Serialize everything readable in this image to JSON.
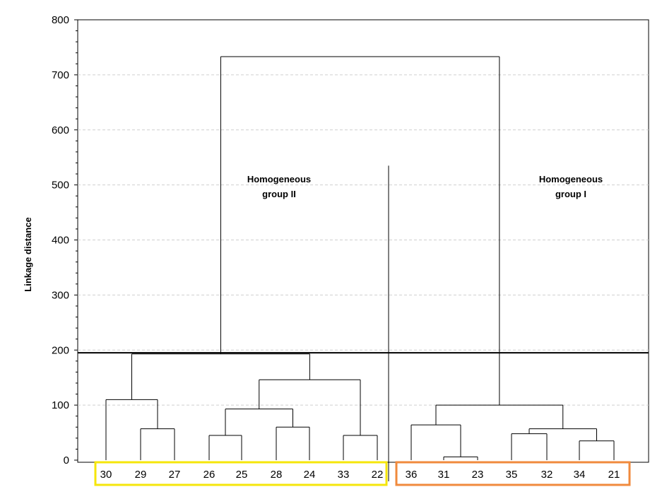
{
  "chart_data": {
    "type": "dendrogram",
    "title": "",
    "xlabel": "",
    "ylabel": "Linkage distance",
    "ylim": [
      0,
      800
    ],
    "yticks": [
      0,
      100,
      200,
      300,
      400,
      500,
      600,
      700,
      800
    ],
    "grid": true,
    "leaves": [
      "30",
      "29",
      "27",
      "26",
      "25",
      "28",
      "24",
      "33",
      "22",
      "36",
      "31",
      "23",
      "35",
      "32",
      "34",
      "21"
    ],
    "merges": [
      {
        "left": "29",
        "right": "27",
        "height": 57
      },
      {
        "left": "30",
        "right": "29-27",
        "height": 110
      },
      {
        "left": "26",
        "right": "25",
        "height": 45
      },
      {
        "left": "28",
        "right": "24",
        "height": 60
      },
      {
        "left": "26-25",
        "right": "28-24",
        "height": 93
      },
      {
        "left": "33",
        "right": "22",
        "height": 45
      },
      {
        "left": "26-25-28-24",
        "right": "33-22",
        "height": 146
      },
      {
        "left": "30-29-27",
        "right": "26-25-28-24-33-22",
        "height": 193
      },
      {
        "left": "31",
        "right": "23",
        "height": 6
      },
      {
        "left": "36",
        "right": "31-23",
        "height": 64
      },
      {
        "left": "34",
        "right": "21",
        "height": 35
      },
      {
        "left": "35",
        "right": "32",
        "height": 48
      },
      {
        "left": "35-32",
        "right": "34-21",
        "height": 57
      },
      {
        "left": "36-31-23",
        "right": "35-32-34-21",
        "height": 100
      },
      {
        "left": "group II",
        "right": "group I",
        "height": 733
      }
    ],
    "cut_line": 195,
    "divider_height": 535,
    "groups": [
      {
        "label_lines": [
          "Homogeneous",
          "group II"
        ],
        "leaves": [
          "30",
          "29",
          "27",
          "26",
          "25",
          "28",
          "24",
          "33",
          "22"
        ],
        "box_color": "#f5e60a"
      },
      {
        "label_lines": [
          "Homogeneous",
          "group I"
        ],
        "leaves": [
          "36",
          "31",
          "23",
          "35",
          "32",
          "34",
          "21"
        ],
        "box_color": "#f08a3c"
      }
    ]
  }
}
